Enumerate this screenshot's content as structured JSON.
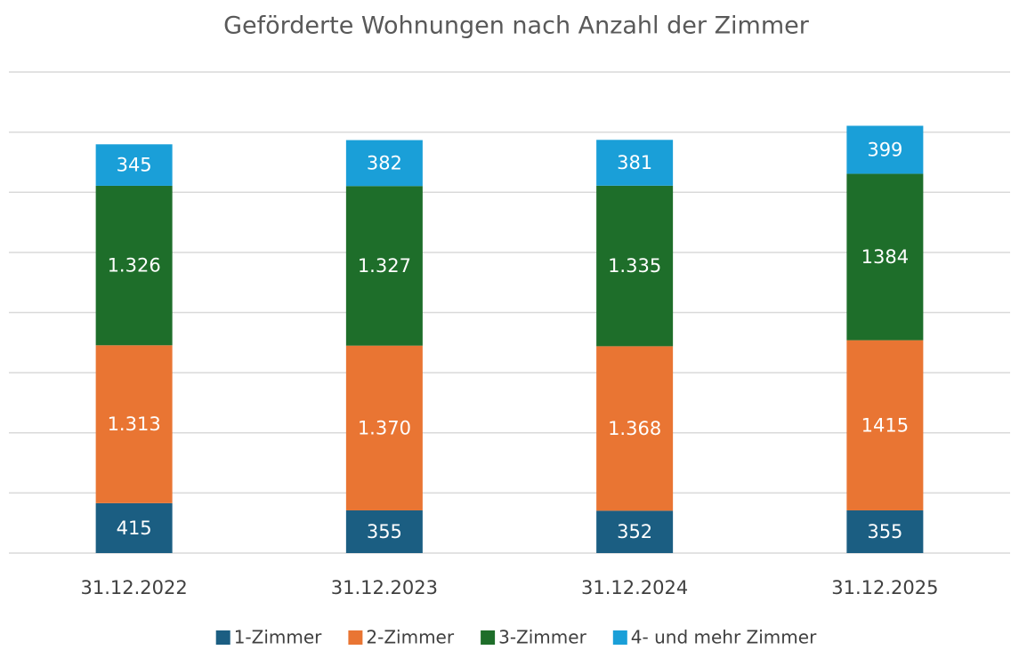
{
  "chart_data": {
    "type": "stacked_bar",
    "title": "Geförderte Wohnungen nach Anzahl der Zimmer",
    "categories": [
      "31.12.2022",
      "31.12.2023",
      "31.12.2024",
      "31.12.2025"
    ],
    "series": [
      {
        "name": "1-Zimmer",
        "color": "#1b5e82",
        "values": [
          415,
          355,
          352,
          355
        ],
        "value_labels": [
          "415",
          "355",
          "352",
          "355"
        ]
      },
      {
        "name": "2-Zimmer",
        "color": "#e97533",
        "values": [
          1313,
          1370,
          1368,
          1415
        ],
        "value_labels": [
          "1.313",
          "1.370",
          "1.368",
          "1415"
        ]
      },
      {
        "name": "3-Zimmer",
        "color": "#1e6e2a",
        "values": [
          1326,
          1327,
          1335,
          1384
        ],
        "value_labels": [
          "1.326",
          "1.327",
          "1.335",
          "1384"
        ]
      },
      {
        "name": "4- und mehr Zimmer",
        "color": "#1a9fd8",
        "values": [
          345,
          382,
          381,
          399
        ],
        "value_labels": [
          "345",
          "382",
          "381",
          "399"
        ]
      }
    ],
    "ylim": [
      0,
      4000
    ],
    "yticks": [
      0,
      500,
      1000,
      1500,
      2000,
      2500,
      3000,
      3500,
      4000
    ],
    "grid": true,
    "legend": "bottom"
  }
}
